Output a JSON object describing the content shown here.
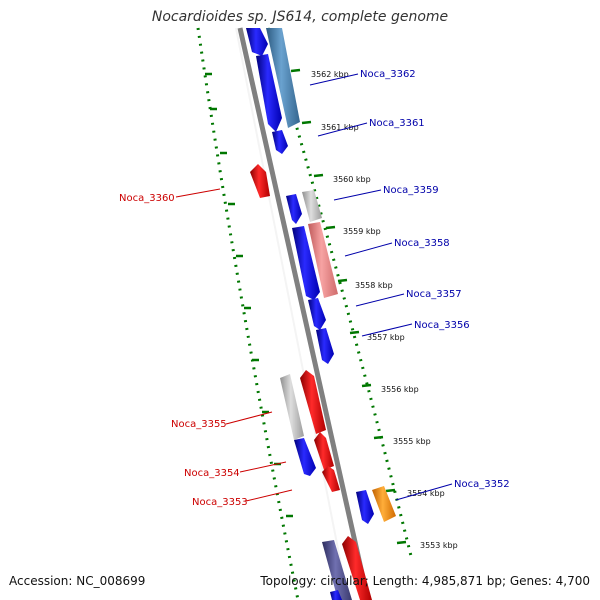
{
  "title": "Nocardioides sp. JS614, complete genome",
  "accession_text": "Accession: NC_008699",
  "summary_text": "Topology: circular; Length: 4,985,871 bp; Genes: 4,700",
  "colors": {
    "forward_gene": "#0000ee",
    "reverse_gene": "#ee0000",
    "forward_label": "#0000aa",
    "reverse_label": "#cc0000",
    "tick": "#007700",
    "backbone": "#808080",
    "steelblue_feature": "#4682b4",
    "pink_feature": "#e88080",
    "gray_feature": "#bbbbbb",
    "orange_feature": "#ff8c00",
    "slate_feature": "#4b4b8c"
  },
  "kbp_marks": [
    "3562 kbp",
    "3561 kbp",
    "3560 kbp",
    "3559 kbp",
    "3558 kbp",
    "3557 kbp",
    "3556 kbp",
    "3555 kbp",
    "3554 kbp",
    "3553 kbp"
  ],
  "gene_labels": [
    {
      "text": "Noca_3362",
      "strand": "forward"
    },
    {
      "text": "Noca_3361",
      "strand": "forward"
    },
    {
      "text": "Noca_3360",
      "strand": "reverse"
    },
    {
      "text": "Noca_3359",
      "strand": "forward"
    },
    {
      "text": "Noca_3358",
      "strand": "forward"
    },
    {
      "text": "Noca_3357",
      "strand": "forward"
    },
    {
      "text": "Noca_3356",
      "strand": "forward"
    },
    {
      "text": "Noca_3355",
      "strand": "reverse"
    },
    {
      "text": "Noca_3354",
      "strand": "reverse"
    },
    {
      "text": "Noca_3353",
      "strand": "reverse"
    },
    {
      "text": "Noca_3352",
      "strand": "forward"
    }
  ]
}
